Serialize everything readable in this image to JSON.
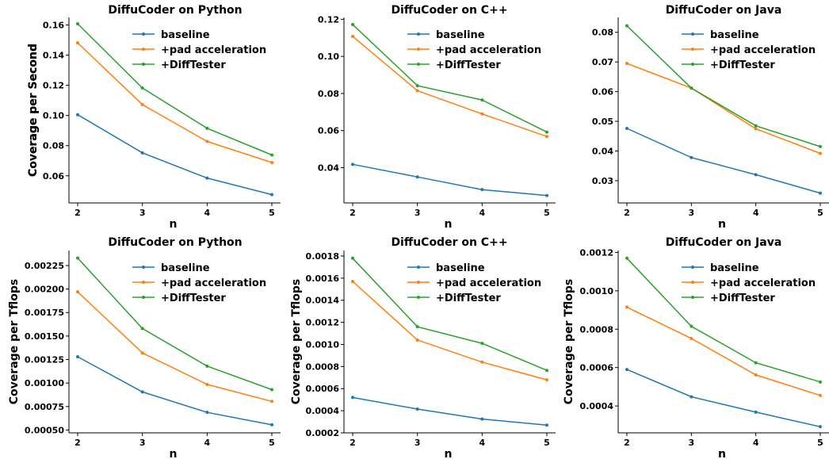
{
  "colors": {
    "baseline": "#1f77b4",
    "pad": "#ff7f0e",
    "difftester": "#2ca02c"
  },
  "legend_labels": [
    "baseline",
    "+pad acceleration",
    "+DiffTester"
  ],
  "chart_data": [
    {
      "type": "line",
      "title": "DiffuCoder on Python",
      "xlabel": "n",
      "ylabel": "Coverage per Second",
      "x": [
        2,
        3,
        4,
        5
      ],
      "xticks": [
        "2",
        "3",
        "4",
        "5"
      ],
      "ylim": [
        0.042,
        0.165
      ],
      "yticks": [
        0.06,
        0.08,
        0.1,
        0.12,
        0.14,
        0.16
      ],
      "ytick_labels": [
        "0.06",
        "0.08",
        "0.10",
        "0.12",
        "0.14",
        "0.16"
      ],
      "legend": "top-right",
      "series": [
        {
          "name": "baseline",
          "values": [
            0.1005,
            0.0752,
            0.0585,
            0.0475
          ]
        },
        {
          "name": "+pad acceleration",
          "values": [
            0.1482,
            0.1072,
            0.0828,
            0.0688
          ]
        },
        {
          "name": "+DiffTester",
          "values": [
            0.1608,
            0.1182,
            0.0915,
            0.0738
          ]
        }
      ]
    },
    {
      "type": "line",
      "title": "DiffuCoder on C++",
      "xlabel": "n",
      "ylabel": "Coverage per Second",
      "x": [
        2,
        3,
        4,
        5
      ],
      "xticks": [
        "2",
        "3",
        "4",
        "5"
      ],
      "ylim": [
        0.021,
        0.121
      ],
      "yticks": [
        0.04,
        0.06,
        0.08,
        0.1,
        0.12
      ],
      "ytick_labels": [
        "0.04",
        "0.06",
        "0.08",
        "0.10",
        "0.12"
      ],
      "legend": "top-right",
      "series": [
        {
          "name": "baseline",
          "values": [
            0.0418,
            0.035,
            0.0282,
            0.025
          ]
        },
        {
          "name": "+pad acceleration",
          "values": [
            0.1108,
            0.0815,
            0.069,
            0.0568
          ]
        },
        {
          "name": "+DiffTester",
          "values": [
            0.1172,
            0.0842,
            0.0765,
            0.0592
          ]
        }
      ]
    },
    {
      "type": "line",
      "title": "DiffuCoder on Java",
      "xlabel": "n",
      "ylabel": "Coverage per Second",
      "x": [
        2,
        3,
        4,
        5
      ],
      "xticks": [
        "2",
        "3",
        "4",
        "5"
      ],
      "ylim": [
        0.0225,
        0.085
      ],
      "yticks": [
        0.03,
        0.04,
        0.05,
        0.06,
        0.07,
        0.08
      ],
      "ytick_labels": [
        "0.03",
        "0.04",
        "0.05",
        "0.06",
        "0.07",
        "0.08"
      ],
      "legend": "top-right",
      "series": [
        {
          "name": "baseline",
          "values": [
            0.0476,
            0.0378,
            0.032,
            0.0258
          ]
        },
        {
          "name": "+pad acceleration",
          "values": [
            0.0695,
            0.0612,
            0.0475,
            0.0392
          ]
        },
        {
          "name": "+DiffTester",
          "values": [
            0.0822,
            0.0612,
            0.0485,
            0.0415
          ]
        }
      ]
    },
    {
      "type": "line",
      "title": "DiffuCoder on Python",
      "xlabel": "n",
      "ylabel": "Coverage per Tflops",
      "x": [
        2,
        3,
        4,
        5
      ],
      "xticks": [
        "2",
        "3",
        "4",
        "5"
      ],
      "ylim": [
        0.00047,
        0.00241
      ],
      "yticks": [
        0.0005,
        0.00075,
        0.001,
        0.00125,
        0.0015,
        0.00175,
        0.002,
        0.00225
      ],
      "ytick_labels": [
        "0.00050",
        "0.00075",
        "0.00100",
        "0.00125",
        "0.00150",
        "0.00175",
        "0.00200",
        "0.00225"
      ],
      "legend": "top-right",
      "series": [
        {
          "name": "baseline",
          "values": [
            0.00128,
            0.000905,
            0.000688,
            0.000555
          ]
        },
        {
          "name": "+pad acceleration",
          "values": [
            0.00197,
            0.00132,
            0.000985,
            0.000805
          ]
        },
        {
          "name": "+DiffTester",
          "values": [
            0.00233,
            0.00158,
            0.00118,
            0.00093
          ]
        }
      ]
    },
    {
      "type": "line",
      "title": "DiffuCoder on C++",
      "xlabel": "n",
      "ylabel": "Coverage per Tflops",
      "x": [
        2,
        3,
        4,
        5
      ],
      "xticks": [
        "2",
        "3",
        "4",
        "5"
      ],
      "ylim": [
        0.0002,
        0.00185
      ],
      "yticks": [
        0.0002,
        0.0004,
        0.0006,
        0.0008,
        0.001,
        0.0012,
        0.0014,
        0.0016,
        0.0018
      ],
      "ytick_labels": [
        "0.0002",
        "0.0004",
        "0.0006",
        "0.0008",
        "0.0010",
        "0.0012",
        "0.0014",
        "0.0016",
        "0.0018"
      ],
      "legend": "top-right",
      "series": [
        {
          "name": "baseline",
          "values": [
            0.00052,
            0.000415,
            0.000325,
            0.00027
          ]
        },
        {
          "name": "+pad acceleration",
          "values": [
            0.00157,
            0.00104,
            0.00084,
            0.00068
          ]
        },
        {
          "name": "+DiffTester",
          "values": [
            0.00178,
            0.00116,
            0.00101,
            0.000765
          ]
        }
      ]
    },
    {
      "type": "line",
      "title": "DiffuCoder on Java",
      "xlabel": "n",
      "ylabel": "Coverage per Tflops",
      "x": [
        2,
        3,
        4,
        5
      ],
      "xticks": [
        "2",
        "3",
        "4",
        "5"
      ],
      "ylim": [
        0.00026,
        0.00121
      ],
      "yticks": [
        0.0004,
        0.0006,
        0.0008,
        0.001,
        0.0012
      ],
      "ytick_labels": [
        "0.0004",
        "0.0006",
        "0.0008",
        "0.0010",
        "0.0012"
      ],
      "legend": "top-right",
      "series": [
        {
          "name": "baseline",
          "values": [
            0.00059,
            0.000448,
            0.000368,
            0.000292
          ]
        },
        {
          "name": "+pad acceleration",
          "values": [
            0.000915,
            0.000752,
            0.000562,
            0.000455
          ]
        },
        {
          "name": "+DiffTester",
          "values": [
            0.00117,
            0.000815,
            0.000625,
            0.000525
          ]
        }
      ]
    }
  ]
}
